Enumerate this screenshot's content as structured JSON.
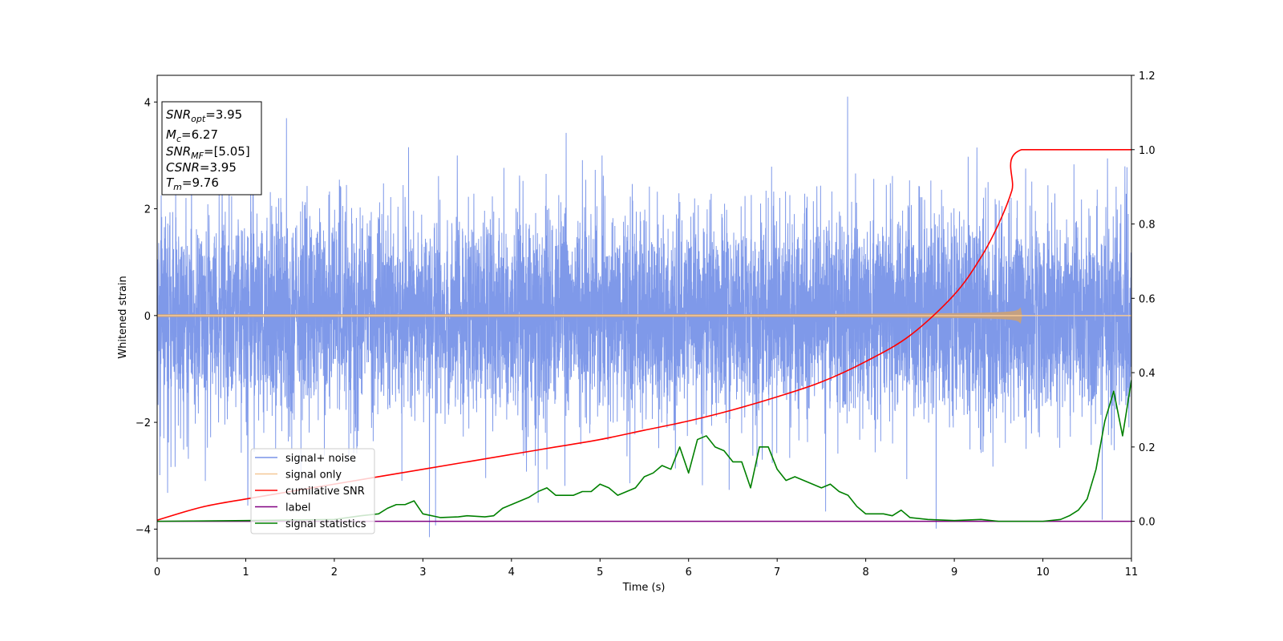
{
  "chart_data": {
    "type": "line",
    "xlabel": "Time (s)",
    "ylabel": "Whitened strain",
    "xlim": [
      0,
      11
    ],
    "ylim": [
      -4.55,
      4.5
    ],
    "y2lim": [
      -0.1,
      1.2
    ],
    "x_ticks": [
      0,
      1,
      2,
      3,
      4,
      5,
      6,
      7,
      8,
      9,
      10,
      11
    ],
    "y_ticks": [
      -4,
      -2,
      0,
      2,
      4
    ],
    "y2_ticks": [
      "0.0",
      "0.2",
      "0.4",
      "0.6",
      "0.8",
      "1.0",
      "1.2"
    ],
    "legend_placement": "lower-left",
    "annotation": [
      {
        "sym": "SNR",
        "sub": "opt",
        "value": "=3.95"
      },
      {
        "sym": "M",
        "sub": "c",
        "value": "=6.27"
      },
      {
        "sym": "SNR",
        "sub": "MF",
        "value": "=[5.05]"
      },
      {
        "sym": "CSNR",
        "sub": "",
        "value": "=3.95"
      },
      {
        "sym": "T",
        "sub": "m",
        "value": "=9.76"
      }
    ],
    "series": [
      {
        "name": "signal+ noise",
        "axis": "left",
        "color": "#7893e8",
        "noise_band": {
          "typical_range": [
            -1.7,
            1.8
          ],
          "extreme_range": [
            -4.15,
            4.1
          ],
          "x_range": [
            0,
            11
          ]
        }
      },
      {
        "name": "signal only",
        "axis": "left",
        "color": "#f5c896",
        "chirp": {
          "x_start": 0,
          "x_merger": 9.76,
          "x_end": 11,
          "amplitude_at_merger": 0.42
        }
      },
      {
        "name": "cumilative SNR",
        "axis": "right",
        "color": "#ff0000",
        "x": [
          0,
          0.5,
          1,
          1.5,
          2,
          2.5,
          3,
          3.5,
          4,
          4.5,
          5,
          5.5,
          6,
          6.5,
          7,
          7.5,
          8,
          8.5,
          9,
          9.3,
          9.5,
          9.65,
          9.76,
          11
        ],
        "y": [
          0.003,
          0.038,
          0.06,
          0.08,
          0.1,
          0.12,
          0.14,
          0.16,
          0.18,
          0.2,
          0.22,
          0.245,
          0.27,
          0.3,
          0.335,
          0.375,
          0.43,
          0.5,
          0.61,
          0.71,
          0.8,
          0.89,
          1.0,
          1.0
        ]
      },
      {
        "name": "label",
        "axis": "right",
        "color": "#800080",
        "x": [
          0,
          11
        ],
        "y": [
          0,
          0
        ]
      },
      {
        "name": "signal statistics",
        "axis": "right",
        "color": "#008000",
        "x": [
          0,
          1,
          2,
          2.3,
          2.5,
          2.6,
          2.7,
          2.8,
          2.9,
          3.0,
          3.2,
          3.4,
          3.5,
          3.7,
          3.8,
          3.9,
          4.0,
          4.1,
          4.2,
          4.3,
          4.4,
          4.5,
          4.6,
          4.7,
          4.8,
          4.9,
          5.0,
          5.1,
          5.2,
          5.3,
          5.4,
          5.5,
          5.6,
          5.7,
          5.8,
          5.9,
          6.0,
          6.1,
          6.2,
          6.3,
          6.4,
          6.5,
          6.6,
          6.7,
          6.8,
          6.9,
          7.0,
          7.1,
          7.2,
          7.3,
          7.4,
          7.5,
          7.6,
          7.7,
          7.8,
          7.9,
          8.0,
          8.2,
          8.3,
          8.4,
          8.5,
          8.7,
          9.0,
          9.3,
          9.5,
          9.7,
          10.0,
          10.2,
          10.3,
          10.4,
          10.5,
          10.6,
          10.7,
          10.8,
          10.9,
          11.0
        ],
        "y": [
          0.0,
          0.002,
          0.005,
          0.015,
          0.02,
          0.035,
          0.045,
          0.045,
          0.055,
          0.02,
          0.01,
          0.012,
          0.015,
          0.012,
          0.015,
          0.035,
          0.045,
          0.055,
          0.065,
          0.08,
          0.09,
          0.07,
          0.07,
          0.07,
          0.08,
          0.08,
          0.1,
          0.09,
          0.07,
          0.08,
          0.09,
          0.12,
          0.13,
          0.15,
          0.14,
          0.2,
          0.13,
          0.22,
          0.23,
          0.2,
          0.19,
          0.16,
          0.16,
          0.09,
          0.2,
          0.2,
          0.14,
          0.11,
          0.12,
          0.11,
          0.1,
          0.09,
          0.1,
          0.08,
          0.07,
          0.04,
          0.02,
          0.02,
          0.015,
          0.03,
          0.01,
          0.005,
          0.002,
          0.005,
          0.0,
          0.0,
          0.0,
          0.005,
          0.015,
          0.03,
          0.06,
          0.14,
          0.27,
          0.35,
          0.23,
          0.38
        ]
      }
    ]
  }
}
